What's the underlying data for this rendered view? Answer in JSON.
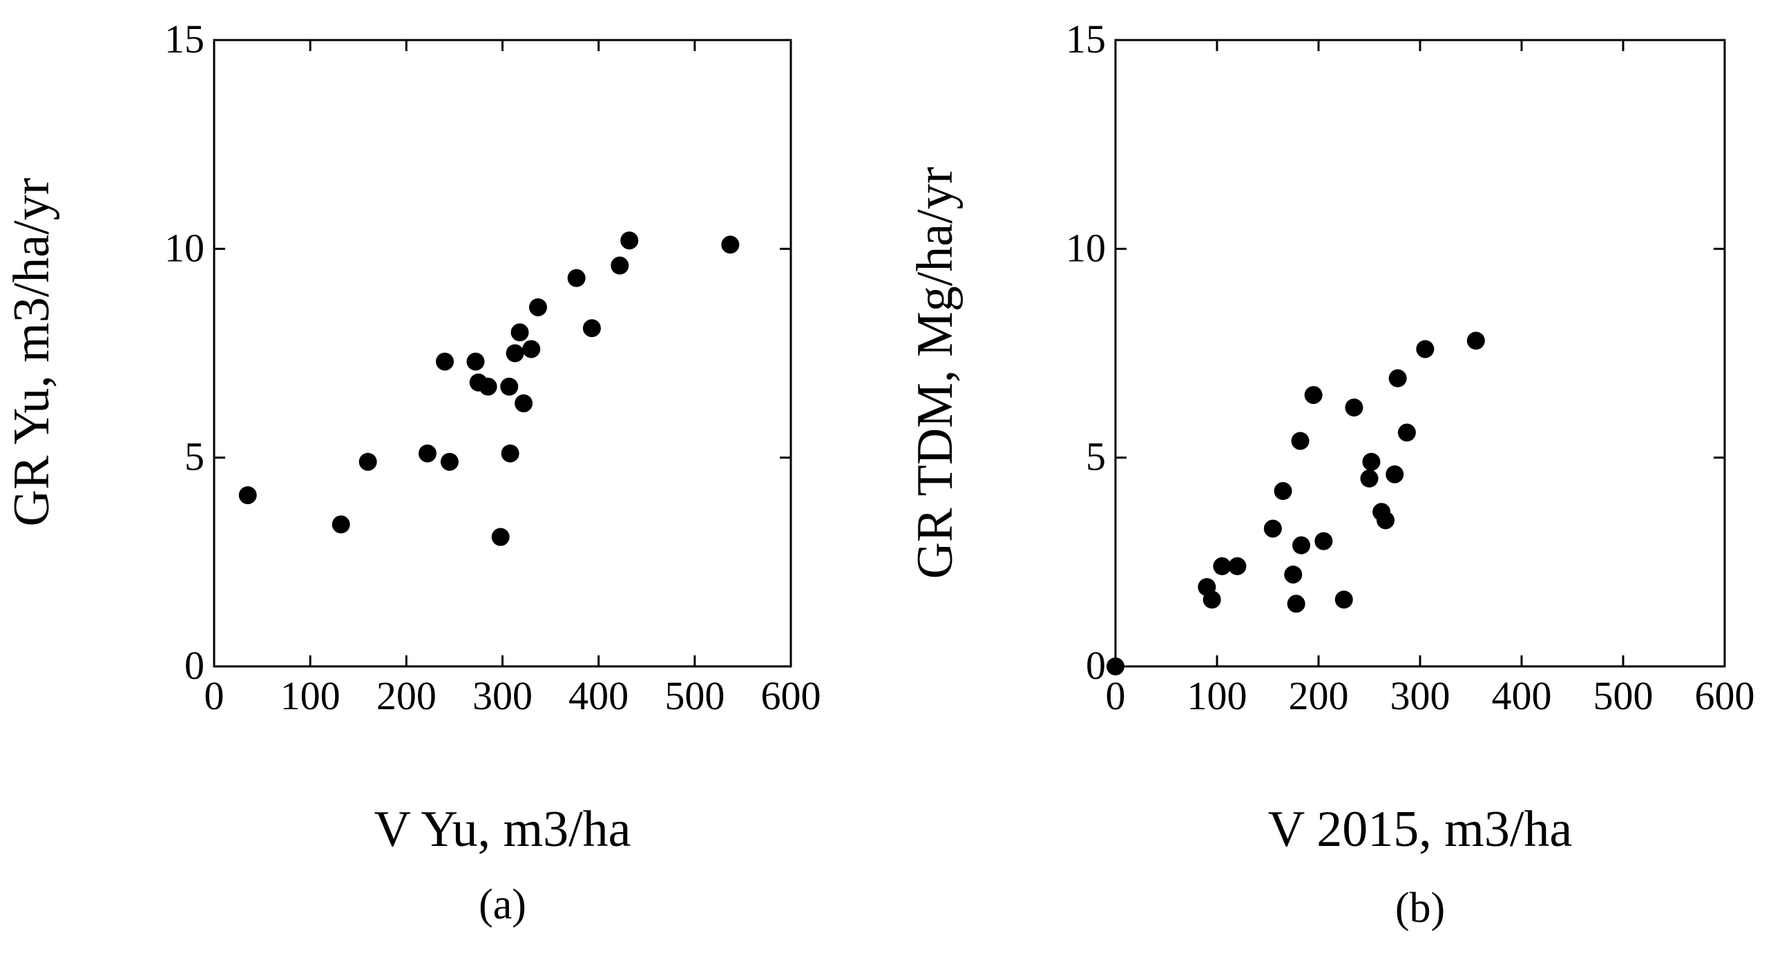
{
  "chart_data": [
    {
      "type": "scatter",
      "panel_label": "(a)",
      "xlabel": "V Yu, m3/ha",
      "ylabel": "GR Yu, m3/ha/yr",
      "xlim": [
        0,
        600
      ],
      "ylim": [
        0,
        15
      ],
      "x_ticks": [
        0,
        100,
        200,
        300,
        400,
        500,
        600
      ],
      "y_ticks": [
        0,
        5,
        10,
        15
      ],
      "marker_color": "#000000",
      "points": [
        {
          "x": 35,
          "y": 4.1
        },
        {
          "x": 132,
          "y": 3.4
        },
        {
          "x": 160,
          "y": 4.9
        },
        {
          "x": 222,
          "y": 5.1
        },
        {
          "x": 240,
          "y": 7.3
        },
        {
          "x": 245,
          "y": 4.9
        },
        {
          "x": 272,
          "y": 7.3
        },
        {
          "x": 275,
          "y": 6.8
        },
        {
          "x": 285,
          "y": 6.7
        },
        {
          "x": 298,
          "y": 3.1
        },
        {
          "x": 307,
          "y": 6.7
        },
        {
          "x": 308,
          "y": 5.1
        },
        {
          "x": 313,
          "y": 7.5
        },
        {
          "x": 318,
          "y": 8.0
        },
        {
          "x": 322,
          "y": 6.3
        },
        {
          "x": 330,
          "y": 7.6
        },
        {
          "x": 337,
          "y": 8.6
        },
        {
          "x": 377,
          "y": 9.3
        },
        {
          "x": 393,
          "y": 8.1
        },
        {
          "x": 422,
          "y": 9.6
        },
        {
          "x": 432,
          "y": 10.2
        },
        {
          "x": 537,
          "y": 10.1
        }
      ]
    },
    {
      "type": "scatter",
      "panel_label": "(b)",
      "xlabel": "V 2015, m3/ha",
      "ylabel": "GR TDM, Mg/ha/yr",
      "xlim": [
        0,
        600
      ],
      "ylim": [
        0,
        15
      ],
      "x_ticks": [
        0,
        100,
        200,
        300,
        400,
        500,
        600
      ],
      "y_ticks": [
        0,
        5,
        10,
        15
      ],
      "marker_color": "#000000",
      "points": [
        {
          "x": 0,
          "y": 0.0
        },
        {
          "x": 90,
          "y": 1.9
        },
        {
          "x": 95,
          "y": 1.6
        },
        {
          "x": 105,
          "y": 2.4
        },
        {
          "x": 120,
          "y": 2.4
        },
        {
          "x": 155,
          "y": 3.3
        },
        {
          "x": 165,
          "y": 4.2
        },
        {
          "x": 175,
          "y": 2.2
        },
        {
          "x": 178,
          "y": 1.5
        },
        {
          "x": 182,
          "y": 5.4
        },
        {
          "x": 183,
          "y": 2.9
        },
        {
          "x": 195,
          "y": 6.5
        },
        {
          "x": 205,
          "y": 3.0
        },
        {
          "x": 225,
          "y": 1.6
        },
        {
          "x": 235,
          "y": 6.2
        },
        {
          "x": 250,
          "y": 4.5
        },
        {
          "x": 252,
          "y": 4.9
        },
        {
          "x": 262,
          "y": 3.7
        },
        {
          "x": 266,
          "y": 3.5
        },
        {
          "x": 275,
          "y": 4.6
        },
        {
          "x": 278,
          "y": 6.9
        },
        {
          "x": 287,
          "y": 5.6
        },
        {
          "x": 305,
          "y": 7.6
        },
        {
          "x": 355,
          "y": 7.8
        }
      ]
    }
  ]
}
